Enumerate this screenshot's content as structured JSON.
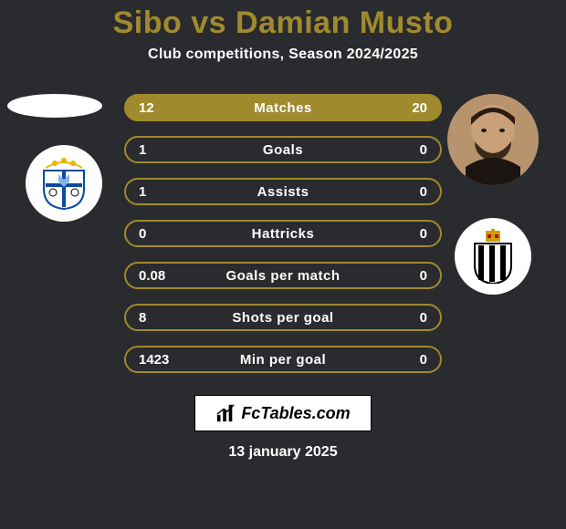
{
  "background_color": "#2a2b2e",
  "accent_color": "#a08a2e",
  "title": {
    "player1": "Sibo",
    "vs": "vs",
    "player2": "Damian Musto",
    "p1_color": "#a08a2e",
    "vs_color": "#a08a2e",
    "p2_color": "#a08a2e",
    "fontsize": 34
  },
  "subtitle": "Club competitions, Season 2024/2025",
  "subtitle_color": "#ffffff",
  "rows": [
    {
      "label": "Matches",
      "left": "12",
      "right": "20",
      "filled": true
    },
    {
      "label": "Goals",
      "left": "1",
      "right": "0",
      "filled": false
    },
    {
      "label": "Assists",
      "left": "1",
      "right": "0",
      "filled": false
    },
    {
      "label": "Hattricks",
      "left": "0",
      "right": "0",
      "filled": false
    },
    {
      "label": "Goals per match",
      "left": "0.08",
      "right": "0",
      "filled": false
    },
    {
      "label": "Shots per goal",
      "left": "8",
      "right": "0",
      "filled": false
    },
    {
      "label": "Min per goal",
      "left": "1423",
      "right": "0",
      "filled": false
    }
  ],
  "row_style": {
    "border_color": "#a08a2e",
    "fill_color": "#a08a2e",
    "text_color": "#ffffff",
    "height": 30,
    "radius": 15,
    "fontsize": 15
  },
  "club_left": {
    "shield_top": "#e8b400",
    "shield_body": "#ffffff",
    "cross": "#0a4aa0",
    "detail": "#7fb4e6"
  },
  "club_right": {
    "tower": "#c9a100",
    "stripes_light": "#ffffff",
    "stripes_dark": "#000000"
  },
  "logo_text": "FcTables.com",
  "date": "13 january 2025"
}
